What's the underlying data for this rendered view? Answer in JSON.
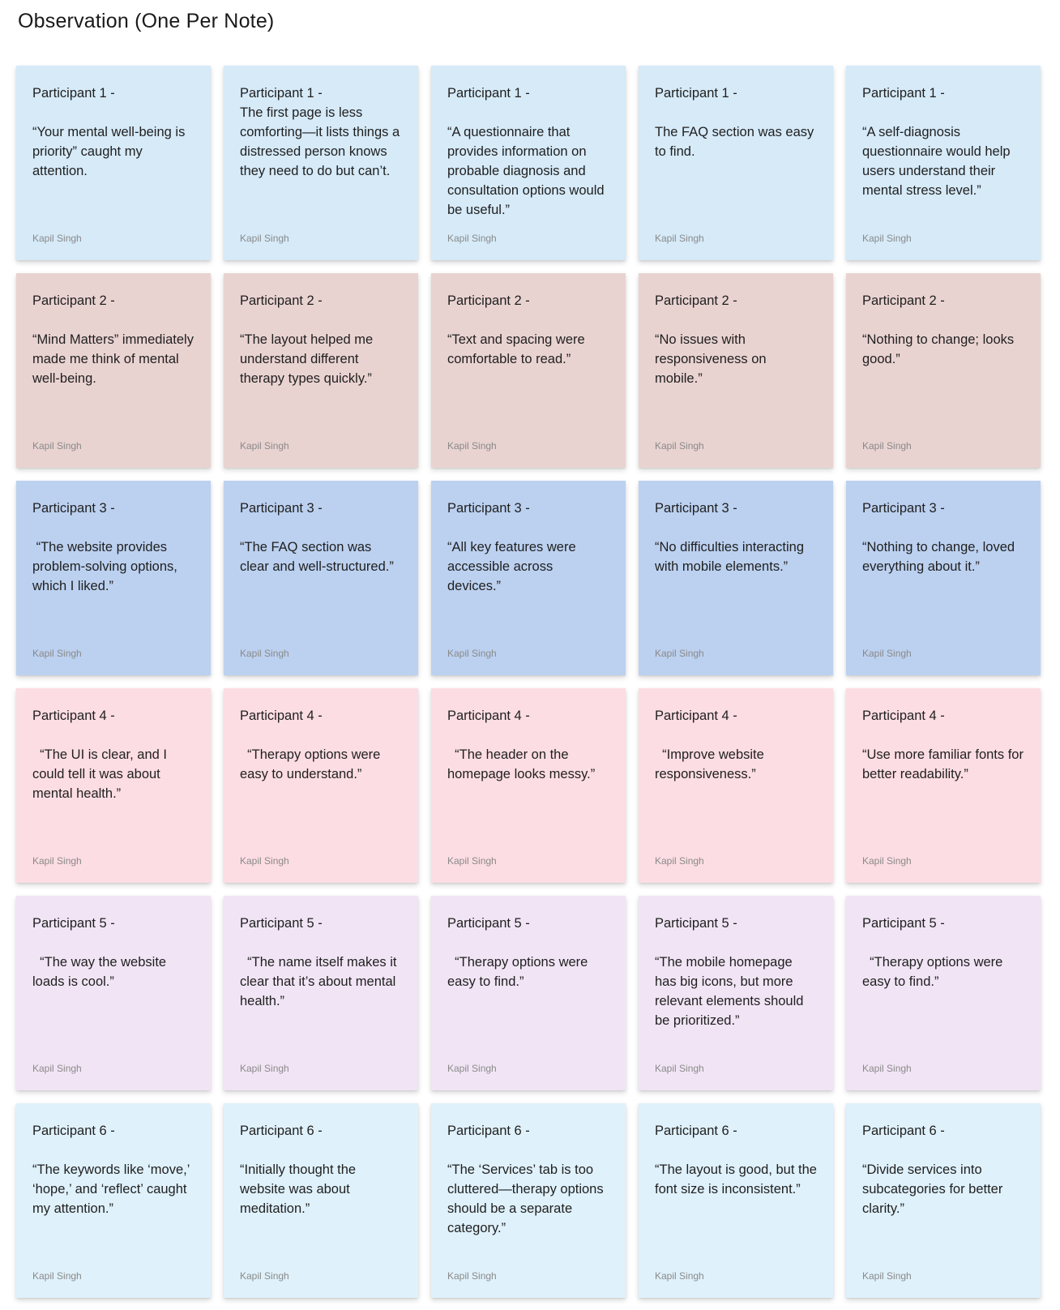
{
  "board": {
    "title": "Observation (One Per Note)"
  },
  "colors": {
    "participant_1": "#d6eaf8",
    "participant_2": "#e9d3d1",
    "participant_3": "#bcd1f0",
    "participant_4": "#fcdde3",
    "participant_5": "#f1e5f5",
    "participant_6": "#dff1fb"
  },
  "notes": [
    {
      "heading": "Participant 1 -",
      "text": "\n“Your mental well-being is priority” caught my attention.",
      "author": "Kapil Singh",
      "color": "participant_1"
    },
    {
      "heading": "Participant 1 -",
      "text": "The first page is less comforting—it lists things a distressed person knows they need to do but can’t.",
      "author": "Kapil Singh",
      "color": "participant_1"
    },
    {
      "heading": "Participant 1 -",
      "text": "\n“A questionnaire that provides information on probable diagnosis and consultation options would be useful.”",
      "author": "Kapil Singh",
      "color": "participant_1"
    },
    {
      "heading": "Participant 1 -",
      "text": "\nThe FAQ section was easy to find.",
      "author": "Kapil Singh",
      "color": "participant_1"
    },
    {
      "heading": "Participant 1 -",
      "text": "\n“A self-diagnosis questionnaire would help users understand their mental stress level.”",
      "author": "Kapil Singh",
      "color": "participant_1"
    },
    {
      "heading": "Participant 2 -",
      "text": "\n“Mind Matters” immediately made me think of mental well-being.",
      "author": "Kapil Singh",
      "color": "participant_2"
    },
    {
      "heading": "Participant 2 -",
      "text": "\n“The layout helped me understand different therapy types quickly.”",
      "author": "Kapil Singh",
      "color": "participant_2"
    },
    {
      "heading": "Participant 2 -",
      "text": "\n“Text and spacing were comfortable to read.”",
      "author": "Kapil Singh",
      "color": "participant_2"
    },
    {
      "heading": "Participant 2 -",
      "text": "\n“No issues with responsiveness on mobile.”",
      "author": "Kapil Singh",
      "color": "participant_2"
    },
    {
      "heading": "Participant 2 -",
      "text": "\n“Nothing to change; looks good.”",
      "author": "Kapil Singh",
      "color": "participant_2"
    },
    {
      "heading": "Participant 3 -",
      "text": "\n “The website provides problem-solving options, which I liked.”",
      "author": "Kapil Singh",
      "color": "participant_3"
    },
    {
      "heading": "Participant 3 -",
      "text": "\n“The FAQ section was clear and well-structured.”",
      "author": "Kapil Singh",
      "color": "participant_3"
    },
    {
      "heading": "Participant 3 -",
      "text": "\n“All key features were accessible across devices.”",
      "author": "Kapil Singh",
      "color": "participant_3"
    },
    {
      "heading": "Participant 3 -",
      "text": "\n“No difficulties interacting with mobile elements.”",
      "author": "Kapil Singh",
      "color": "participant_3"
    },
    {
      "heading": "Participant 3 -",
      "text": "\n“Nothing to change, loved everything about it.”",
      "author": "Kapil Singh",
      "color": "participant_3"
    },
    {
      "heading": "Participant 4 -",
      "text": "\n  “The UI is clear, and I could tell it was about mental health.”",
      "author": "Kapil Singh",
      "color": "participant_4"
    },
    {
      "heading": "Participant 4 -",
      "text": "\n  “Therapy options were easy to understand.”",
      "author": "Kapil Singh",
      "color": "participant_4"
    },
    {
      "heading": "Participant 4 -",
      "text": "\n  “The header on the homepage looks messy.”",
      "author": "Kapil Singh",
      "color": "participant_4"
    },
    {
      "heading": "Participant 4 -",
      "text": "\n  “Improve website responsiveness.”",
      "author": "Kapil Singh",
      "color": "participant_4"
    },
    {
      "heading": "Participant 4 -",
      "text": "\n“Use more familiar fonts for better readability.”",
      "author": "Kapil Singh",
      "color": "participant_4"
    },
    {
      "heading": "Participant 5 -",
      "text": "\n  “The way the website loads is cool.”",
      "author": "Kapil Singh",
      "color": "participant_5"
    },
    {
      "heading": "Participant 5 -",
      "text": "\n  “The name itself makes it clear that it’s about mental health.”",
      "author": "Kapil Singh",
      "color": "participant_5"
    },
    {
      "heading": "Participant 5 -",
      "text": "\n  “Therapy options were easy to find.”",
      "author": "Kapil Singh",
      "color": "participant_5"
    },
    {
      "heading": "Participant 5 -",
      "text": "\n“The mobile homepage has big icons, but more relevant elements should be prioritized.”",
      "author": "Kapil Singh",
      "color": "participant_5"
    },
    {
      "heading": "Participant 5 -",
      "text": "\n  “Therapy options were easy to find.”",
      "author": "Kapil Singh",
      "color": "participant_5"
    },
    {
      "heading": "Participant 6 -",
      "text": "\n“The keywords like ‘move,’ ‘hope,’ and ‘reflect’ caught my attention.”",
      "author": "Kapil Singh",
      "color": "participant_6"
    },
    {
      "heading": "Participant 6 -",
      "text": "\n“Initially thought the website was about meditation.”",
      "author": "Kapil Singh",
      "color": "participant_6"
    },
    {
      "heading": "Participant 6 -",
      "text": "\n“The ‘Services’ tab is too cluttered—therapy options should be a separate category.”",
      "author": "Kapil Singh",
      "color": "participant_6"
    },
    {
      "heading": "Participant 6 -",
      "text": "\n“The layout is good, but the font size is inconsistent.”",
      "author": "Kapil Singh",
      "color": "participant_6"
    },
    {
      "heading": "Participant 6 -",
      "text": "\n“Divide services into subcategories for better clarity.”",
      "author": "Kapil Singh",
      "color": "participant_6"
    }
  ]
}
